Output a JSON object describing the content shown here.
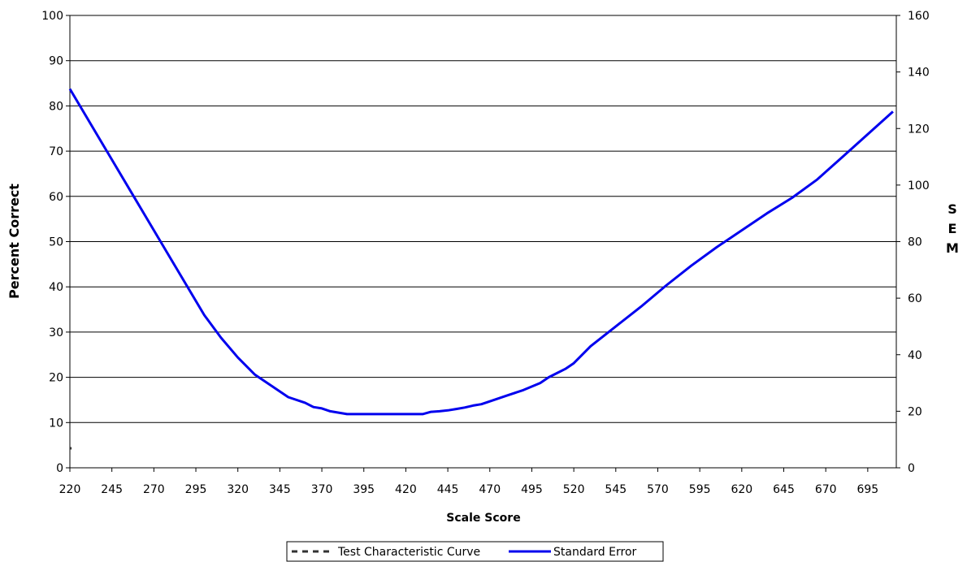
{
  "chart_data": {
    "type": "line",
    "xlabel": "Scale Score",
    "ylabel_left": "Percent Correct",
    "ylabel_right": "SEM",
    "x_range": [
      220,
      712
    ],
    "x_ticks": [
      220,
      245,
      270,
      295,
      320,
      345,
      370,
      395,
      420,
      445,
      470,
      495,
      520,
      545,
      570,
      595,
      620,
      645,
      670,
      695
    ],
    "y_left_range": [
      0,
      100
    ],
    "y_left_ticks": [
      0,
      10,
      20,
      30,
      40,
      50,
      60,
      70,
      80,
      90,
      100
    ],
    "y_right_range": [
      0,
      160
    ],
    "y_right_ticks": [
      0,
      20,
      40,
      60,
      80,
      100,
      120,
      140,
      160
    ],
    "grid": "horizontal",
    "legend_position": "bottom",
    "colors": {
      "standard_error": "#0000ee",
      "tcc": "#333333",
      "grid": "#000000"
    },
    "series": [
      {
        "name": "Test Characteristic Curve",
        "axis": "left",
        "style": "dashed",
        "x": [
          220,
          221
        ],
        "y": [
          4.3,
          4.3
        ]
      },
      {
        "name": "Standard Error",
        "axis": "right",
        "style": "solid",
        "x": [
          220,
          240,
          260,
          280,
          300,
          310,
          320,
          330,
          340,
          350,
          360,
          365,
          370,
          375,
          380,
          385,
          390,
          400,
          410,
          420,
          430,
          435,
          440,
          445,
          450,
          455,
          460,
          465,
          470,
          475,
          480,
          490,
          500,
          505,
          510,
          515,
          520,
          530,
          545,
          560,
          575,
          590,
          605,
          620,
          635,
          650,
          665,
          680,
          695,
          710
        ],
        "y": [
          134,
          114,
          94,
          74,
          54,
          46,
          39,
          33,
          29,
          25,
          23,
          21.5,
          21,
          20,
          19.5,
          19,
          19,
          19,
          19,
          19,
          19,
          19.8,
          20,
          20.3,
          20.8,
          21.3,
          22,
          22.5,
          23.5,
          24.5,
          25.5,
          27.5,
          30,
          32,
          33.5,
          35,
          37,
          43,
          50,
          57,
          64.5,
          71.5,
          78,
          84,
          90,
          95.5,
          102,
          110,
          118,
          126
        ]
      }
    ],
    "legend": [
      {
        "label": "Test Characteristic Curve",
        "style": "dashed"
      },
      {
        "label": "Standard Error",
        "style": "solid"
      }
    ]
  }
}
